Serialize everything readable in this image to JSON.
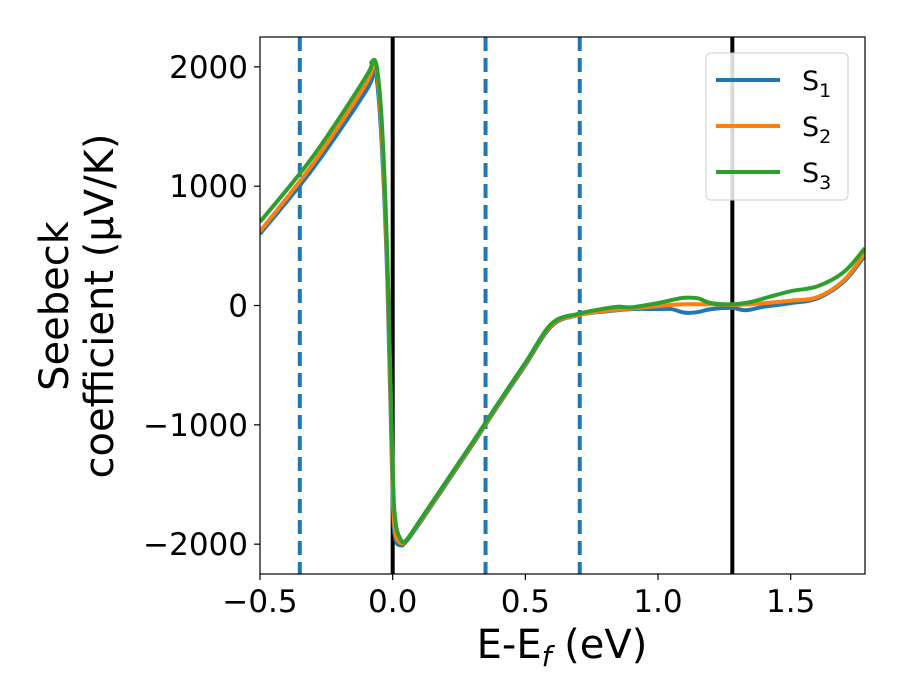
{
  "chart_data": {
    "type": "line",
    "xlabel_main": "E-E",
    "xlabel_sub": "f",
    "xlabel_unit": " (eV)",
    "ylabel_line1": "Seebeck",
    "ylabel_line2": "coefficient  (μV/K)",
    "xlim": [
      -0.5,
      1.78
    ],
    "ylim": [
      -2250,
      2250
    ],
    "xticks": [
      -0.5,
      0.0,
      0.5,
      1.0,
      1.5
    ],
    "xtick_labels": [
      "−0.5",
      "0.0",
      "0.5",
      "1.0",
      "1.5"
    ],
    "yticks": [
      -2000,
      -1000,
      0,
      1000,
      2000
    ],
    "ytick_labels": [
      "−2000",
      "−1000",
      "0",
      "1000",
      "2000"
    ],
    "grid": false,
    "legend_position": "top-right",
    "vlines_solid": [
      0.0,
      1.28
    ],
    "vlines_dashed": [
      -0.35,
      0.35,
      0.705
    ],
    "series": [
      {
        "name": "S",
        "sub": "1",
        "color": "#1f77b4",
        "points": [
          [
            -0.5,
            600
          ],
          [
            -0.3,
            1150
          ],
          [
            -0.1,
            1800
          ],
          [
            -0.075,
            1950
          ],
          [
            -0.06,
            1900
          ],
          [
            -0.04,
            1300
          ],
          [
            -0.02,
            200
          ],
          [
            0.0,
            -1600
          ],
          [
            0.01,
            -1950
          ],
          [
            0.03,
            -2010
          ],
          [
            0.05,
            -1980
          ],
          [
            0.1,
            -1830
          ],
          [
            0.2,
            -1500
          ],
          [
            0.3,
            -1170
          ],
          [
            0.4,
            -830
          ],
          [
            0.5,
            -500
          ],
          [
            0.6,
            -170
          ],
          [
            0.7,
            -80
          ],
          [
            0.8,
            -50
          ],
          [
            0.9,
            -30
          ],
          [
            1.0,
            -30
          ],
          [
            1.05,
            -30
          ],
          [
            1.1,
            -60
          ],
          [
            1.15,
            -55
          ],
          [
            1.2,
            -30
          ],
          [
            1.28,
            -20
          ],
          [
            1.33,
            -40
          ],
          [
            1.4,
            -10
          ],
          [
            1.5,
            20
          ],
          [
            1.6,
            60
          ],
          [
            1.7,
            200
          ],
          [
            1.78,
            420
          ]
        ]
      },
      {
        "name": "S",
        "sub": "2",
        "color": "#ff7f0e",
        "points": [
          [
            -0.5,
            620
          ],
          [
            -0.3,
            1190
          ],
          [
            -0.1,
            1860
          ],
          [
            -0.08,
            2000
          ],
          [
            -0.06,
            1960
          ],
          [
            -0.04,
            1400
          ],
          [
            -0.02,
            300
          ],
          [
            0.0,
            -1500
          ],
          [
            0.01,
            -1900
          ],
          [
            0.03,
            -1990
          ],
          [
            0.05,
            -1970
          ],
          [
            0.1,
            -1820
          ],
          [
            0.2,
            -1490
          ],
          [
            0.3,
            -1160
          ],
          [
            0.4,
            -820
          ],
          [
            0.5,
            -490
          ],
          [
            0.6,
            -160
          ],
          [
            0.7,
            -80
          ],
          [
            0.8,
            -45
          ],
          [
            0.9,
            -25
          ],
          [
            1.0,
            -5
          ],
          [
            1.05,
            5
          ],
          [
            1.1,
            10
          ],
          [
            1.15,
            10
          ],
          [
            1.2,
            10
          ],
          [
            1.28,
            5
          ],
          [
            1.35,
            10
          ],
          [
            1.4,
            20
          ],
          [
            1.5,
            40
          ],
          [
            1.6,
            70
          ],
          [
            1.7,
            210
          ],
          [
            1.78,
            440
          ]
        ]
      },
      {
        "name": "S",
        "sub": "3",
        "color": "#2ca02c",
        "points": [
          [
            -0.5,
            700
          ],
          [
            -0.3,
            1250
          ],
          [
            -0.1,
            1920
          ],
          [
            -0.08,
            2040
          ],
          [
            -0.06,
            2000
          ],
          [
            -0.04,
            1500
          ],
          [
            -0.02,
            400
          ],
          [
            0.0,
            -1350
          ],
          [
            0.01,
            -1800
          ],
          [
            0.03,
            -1960
          ],
          [
            0.05,
            -1970
          ],
          [
            0.1,
            -1810
          ],
          [
            0.2,
            -1480
          ],
          [
            0.3,
            -1150
          ],
          [
            0.4,
            -810
          ],
          [
            0.5,
            -480
          ],
          [
            0.6,
            -150
          ],
          [
            0.7,
            -70
          ],
          [
            0.8,
            -25
          ],
          [
            0.85,
            -10
          ],
          [
            0.9,
            -15
          ],
          [
            1.0,
            20
          ],
          [
            1.05,
            45
          ],
          [
            1.1,
            65
          ],
          [
            1.15,
            60
          ],
          [
            1.2,
            20
          ],
          [
            1.28,
            10
          ],
          [
            1.35,
            30
          ],
          [
            1.4,
            60
          ],
          [
            1.5,
            120
          ],
          [
            1.6,
            160
          ],
          [
            1.7,
            280
          ],
          [
            1.78,
            480
          ]
        ]
      }
    ]
  }
}
